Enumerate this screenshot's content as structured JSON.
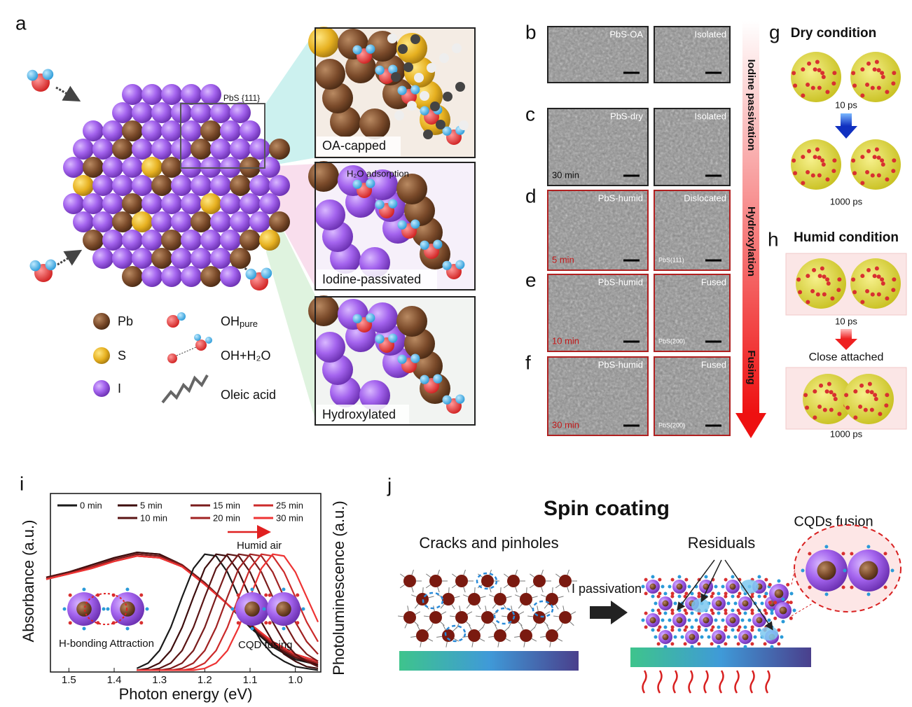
{
  "panel_a": {
    "letter": "a",
    "facet_label": "PbS {111}",
    "inset_labels": [
      "OA-capped",
      "Iodine-passivated",
      "Hydroxylated"
    ],
    "adsorption_label": "H₂O adsorption",
    "legend": [
      {
        "label": "Pb"
      },
      {
        "label": "S"
      },
      {
        "label": "I"
      },
      {
        "label": "OH",
        "subscript": "pure"
      },
      {
        "label": "OH+H₂O"
      },
      {
        "label": "Oleic acid"
      }
    ]
  },
  "tem_panels": [
    {
      "letter": "b",
      "sample": "PbS-OA",
      "state": "Isolated"
    },
    {
      "letter": "c",
      "sample": "PbS-dry",
      "state": "Isolated",
      "time": "30 min"
    },
    {
      "letter": "d",
      "sample": "PbS-humid",
      "state": "Dislocated",
      "time": "5 min",
      "plane": "PbS(111)"
    },
    {
      "letter": "e",
      "sample": "PbS-humid",
      "state": "Fused",
      "time": "10 min",
      "plane": "PbS(200)"
    },
    {
      "letter": "f",
      "sample": "PbS-humid",
      "state": "Fused",
      "time": "30 min",
      "plane": "PbS(200)"
    }
  ],
  "process_arrow": [
    "Iodine passivation",
    "Hydroxylation",
    "Fusing"
  ],
  "panel_g": {
    "letter": "g",
    "title": "Dry condition",
    "times": [
      "10 ps",
      "1000 ps"
    ]
  },
  "panel_h": {
    "letter": "h",
    "title": "Humid condition",
    "times": [
      "10 ps",
      "1000 ps"
    ],
    "transition": "Close attached"
  },
  "panel_i": {
    "letter": "i"
  },
  "panel_j": {
    "letter": "j",
    "title": "Spin coating",
    "left_label": "Cracks and pinholes",
    "step": "I passivation",
    "right_label": "Residuals",
    "zoom_label": "CQDs fusion"
  },
  "chart_data": [
    {
      "type": "line",
      "x_label": "Photon energy (eV)",
      "y_label": "Absorbance (a.u.)",
      "annotations": [
        "Humid air",
        "H-bonding Attraction",
        "CQD fusing"
      ],
      "x": [
        1.55,
        1.5,
        1.45,
        1.4,
        1.35,
        1.3,
        1.25,
        1.2,
        1.15,
        1.1,
        1.05,
        1.0,
        0.95
      ],
      "xlim": [
        1.55,
        0.95
      ],
      "xticks": [
        1.5,
        1.4,
        1.3,
        1.2,
        1.1,
        {
          "value": 1,
          "label": "1.0"
        }
      ],
      "ylim": [
        0,
        1
      ],
      "series": [
        {
          "name": "0 min",
          "color": "#1a1a1a",
          "values": [
            0.53,
            0.56,
            0.6,
            0.64,
            0.67,
            0.66,
            0.6,
            0.5,
            0.38,
            0.25,
            0.14,
            0.07,
            0.04
          ]
        },
        {
          "name": "5 min",
          "color": "#3d0d0d",
          "values": [
            0.53,
            0.56,
            0.6,
            0.64,
            0.67,
            0.66,
            0.6,
            0.5,
            0.38,
            0.26,
            0.15,
            0.08,
            0.04
          ]
        },
        {
          "name": "10 min",
          "color": "#5a1414",
          "values": [
            0.53,
            0.56,
            0.59,
            0.63,
            0.66,
            0.65,
            0.6,
            0.5,
            0.38,
            0.26,
            0.15,
            0.08,
            0.05
          ]
        },
        {
          "name": "15 min",
          "color": "#7a1c1c",
          "values": [
            0.52,
            0.55,
            0.59,
            0.63,
            0.66,
            0.65,
            0.6,
            0.5,
            0.38,
            0.26,
            0.16,
            0.09,
            0.05
          ]
        },
        {
          "name": "20 min",
          "color": "#a02222",
          "values": [
            0.52,
            0.55,
            0.59,
            0.62,
            0.65,
            0.64,
            0.59,
            0.49,
            0.38,
            0.27,
            0.16,
            0.09,
            0.05
          ]
        },
        {
          "name": "25 min",
          "color": "#cc2a2a",
          "values": [
            0.52,
            0.55,
            0.58,
            0.62,
            0.65,
            0.64,
            0.59,
            0.49,
            0.38,
            0.27,
            0.17,
            0.1,
            0.06
          ]
        },
        {
          "name": "30 min",
          "color": "#ee3333",
          "values": [
            0.52,
            0.55,
            0.58,
            0.62,
            0.65,
            0.64,
            0.59,
            0.49,
            0.38,
            0.27,
            0.17,
            0.1,
            0.06
          ]
        }
      ]
    },
    {
      "type": "line",
      "y_label": "Photoluminescence (a.u.)",
      "x": [
        1.35,
        1.325,
        1.3,
        1.275,
        1.25,
        1.225,
        1.2,
        1.175,
        1.15,
        1.125,
        1.1,
        1.075,
        1.05,
        1.025,
        1.0,
        0.975,
        0.95
      ],
      "xlim": [
        1.55,
        0.95
      ],
      "ylim": [
        0,
        1
      ],
      "series": [
        {
          "color": "#1a1a1a",
          "values": [
            0.02,
            0.05,
            0.12,
            0.25,
            0.42,
            0.58,
            0.66,
            0.65,
            0.56,
            0.42,
            0.28,
            0.17,
            0.1,
            0.06,
            0.03,
            0.02,
            0.01
          ]
        },
        {
          "color": "#3d0d0d",
          "values": [
            0.01,
            0.02,
            0.05,
            0.12,
            0.25,
            0.42,
            0.58,
            0.66,
            0.65,
            0.56,
            0.42,
            0.28,
            0.17,
            0.1,
            0.06,
            0.03,
            0.02
          ]
        },
        {
          "color": "#5a1414",
          "values": [
            0.01,
            0.01,
            0.02,
            0.05,
            0.12,
            0.25,
            0.42,
            0.58,
            0.66,
            0.65,
            0.56,
            0.42,
            0.28,
            0.17,
            0.1,
            0.06,
            0.03
          ]
        },
        {
          "color": "#7a1c1c",
          "values": [
            0.01,
            0.01,
            0.01,
            0.02,
            0.05,
            0.12,
            0.25,
            0.42,
            0.58,
            0.66,
            0.65,
            0.56,
            0.42,
            0.28,
            0.17,
            0.1,
            0.06
          ]
        },
        {
          "color": "#a02222",
          "values": [
            0.01,
            0.01,
            0.01,
            0.01,
            0.02,
            0.05,
            0.12,
            0.25,
            0.42,
            0.58,
            0.66,
            0.65,
            0.56,
            0.42,
            0.28,
            0.17,
            0.1
          ]
        },
        {
          "color": "#cc2a2a",
          "values": [
            0.01,
            0.01,
            0.01,
            0.01,
            0.01,
            0.02,
            0.05,
            0.12,
            0.25,
            0.42,
            0.58,
            0.66,
            0.65,
            0.56,
            0.42,
            0.28,
            0.17
          ]
        },
        {
          "color": "#ee3333",
          "values": [
            0.01,
            0.01,
            0.01,
            0.01,
            0.01,
            0.01,
            0.02,
            0.05,
            0.12,
            0.25,
            0.42,
            0.58,
            0.66,
            0.65,
            0.56,
            0.42,
            0.28
          ]
        }
      ]
    }
  ]
}
